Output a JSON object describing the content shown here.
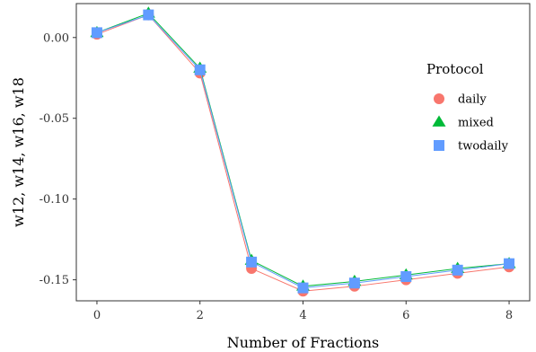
{
  "chart_data": {
    "type": "line",
    "title": "",
    "xlabel": "Number of Fractions",
    "ylabel": "w12, w14, w16, w18",
    "xlim": [
      -0.4,
      8.4
    ],
    "ylim": [
      -0.163,
      0.021
    ],
    "x_ticks": [
      0,
      2,
      4,
      6,
      8
    ],
    "y_ticks": [
      0.0,
      -0.05,
      -0.1,
      -0.15
    ],
    "y_tick_labels": [
      "0.00",
      "-0.05",
      "-0.10",
      "-0.15"
    ],
    "grid": false,
    "legend": {
      "title": "Protocol",
      "position": "right"
    },
    "x": [
      0,
      1,
      2,
      3,
      4,
      5,
      6,
      7,
      8
    ],
    "series": [
      {
        "name": "daily",
        "color": "#F8766D",
        "marker": "circle",
        "values": [
          0.002,
          0.014,
          -0.022,
          -0.143,
          -0.157,
          -0.154,
          -0.15,
          -0.146,
          -0.142
        ]
      },
      {
        "name": "mixed",
        "color": "#00BA38",
        "marker": "triangle",
        "values": [
          0.003,
          0.015,
          -0.019,
          -0.138,
          -0.154,
          -0.151,
          -0.147,
          -0.143,
          -0.14
        ]
      },
      {
        "name": "twodaily",
        "color": "#619CFF",
        "marker": "square",
        "values": [
          0.003,
          0.014,
          -0.02,
          -0.139,
          -0.155,
          -0.152,
          -0.148,
          -0.144,
          -0.14
        ]
      }
    ]
  }
}
